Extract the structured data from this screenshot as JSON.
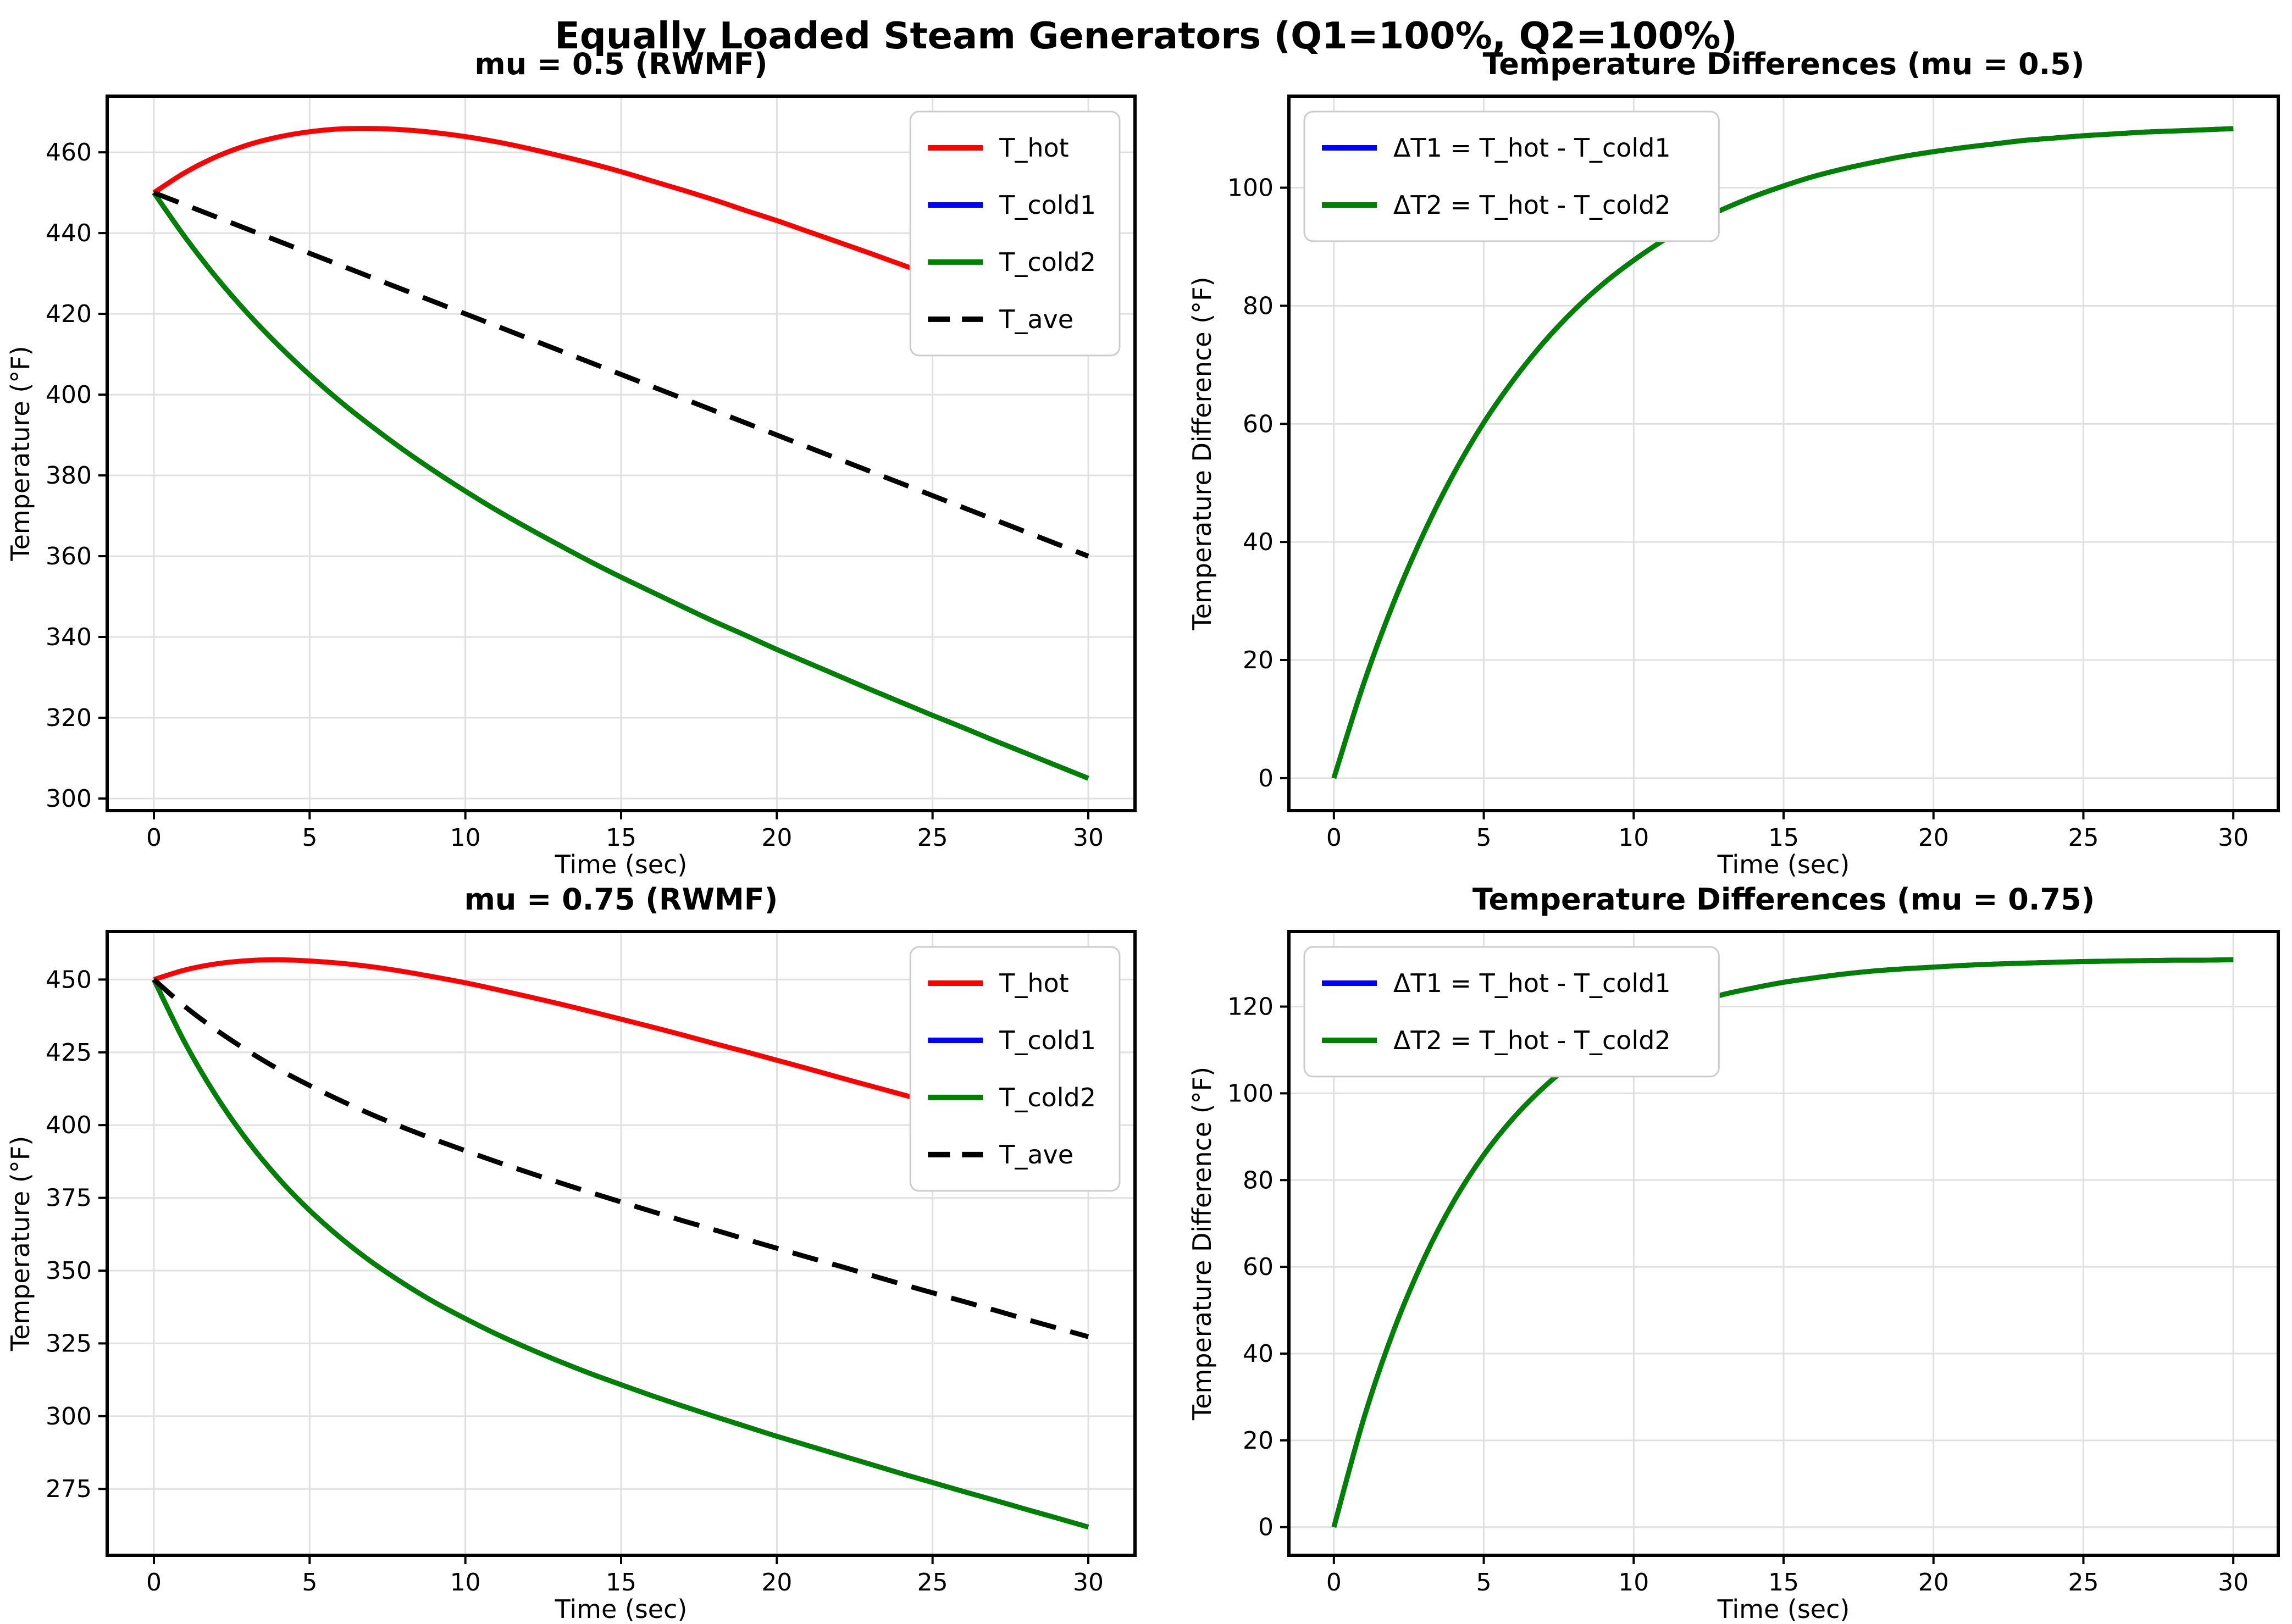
{
  "figure": {
    "suptitle": "Equally Loaded Steam Generators (Q1=100%, Q2=100%)",
    "background": "#ffffff",
    "text_color": "#000000",
    "grid_color": "#e0e0e0",
    "spine_color": "#000000",
    "legend_border_color": "#cccccc"
  },
  "chart_data": [
    {
      "type": "line",
      "title": "mu = 0.5 (RWMF)",
      "xlabel": "Time (sec)",
      "ylabel": "Temperature (°F)",
      "xlim": [
        -1.5,
        31.5
      ],
      "ylim": [
        297.0,
        473.9
      ],
      "xticks": [
        0,
        5,
        10,
        15,
        20,
        25,
        30
      ],
      "yticks": [
        300,
        320,
        340,
        360,
        380,
        400,
        420,
        440,
        460
      ],
      "grid": true,
      "legend_loc": "upper right",
      "x": [
        0,
        1,
        2,
        3,
        4,
        5,
        6,
        7,
        8,
        9,
        10,
        11,
        12,
        13,
        14,
        15,
        16,
        17,
        18,
        19,
        20,
        21,
        22,
        23,
        24,
        25,
        26,
        27,
        28,
        29,
        30
      ],
      "series": [
        {
          "name": "T_hot",
          "color": "#ff0000",
          "dash": null,
          "values": [
            450.0,
            455.0,
            458.9,
            461.8,
            463.8,
            465.1,
            465.8,
            465.9,
            465.6,
            464.9,
            463.9,
            462.6,
            461.0,
            459.2,
            457.3,
            455.2,
            452.9,
            450.6,
            448.2,
            445.6,
            443.1,
            440.4,
            437.7,
            435.0,
            432.2,
            429.4,
            426.5,
            423.7,
            420.8,
            417.9,
            415.0
          ]
        },
        {
          "name": "T_cold1",
          "color": "#0000ff",
          "dash": null,
          "values": [
            450.0,
            439.0,
            429.1,
            420.2,
            412.2,
            404.9,
            398.2,
            392.1,
            386.4,
            381.1,
            376.1,
            371.4,
            367.0,
            362.8,
            358.7,
            354.8,
            351.1,
            347.4,
            343.8,
            340.4,
            336.9,
            333.6,
            330.3,
            327.0,
            323.8,
            320.6,
            317.5,
            314.3,
            311.2,
            308.1,
            305.0
          ]
        },
        {
          "name": "T_cold2",
          "color": "#008000",
          "dash": null,
          "values": [
            450.0,
            439.0,
            429.1,
            420.2,
            412.2,
            404.9,
            398.2,
            392.1,
            386.4,
            381.1,
            376.1,
            371.4,
            367.0,
            362.8,
            358.7,
            354.8,
            351.1,
            347.4,
            343.8,
            340.4,
            336.9,
            333.6,
            330.3,
            327.0,
            323.8,
            320.6,
            317.5,
            314.3,
            311.2,
            308.1,
            305.0
          ]
        },
        {
          "name": "T_ave",
          "color": "#000000",
          "dash": [
            48,
            27
          ],
          "values": [
            450,
            447,
            444,
            441,
            438,
            435,
            432,
            429,
            426,
            423,
            420,
            417,
            414,
            411,
            408,
            405,
            402,
            399,
            396,
            393,
            390,
            387,
            384,
            381,
            378,
            375,
            372,
            369,
            366,
            363,
            360
          ]
        }
      ]
    },
    {
      "type": "line",
      "title": "Temperature Differences (mu = 0.5)",
      "xlabel": "Time (sec)",
      "ylabel": "Temperature Difference (°F)",
      "xlim": [
        -1.5,
        31.5
      ],
      "ylim": [
        -5.5,
        115.5
      ],
      "xticks": [
        0,
        5,
        10,
        15,
        20,
        25,
        30
      ],
      "yticks": [
        0,
        20,
        40,
        60,
        80,
        100
      ],
      "grid": true,
      "legend_loc": "upper left",
      "x": [
        0,
        1,
        2,
        3,
        4,
        5,
        6,
        7,
        8,
        9,
        10,
        11,
        12,
        13,
        14,
        15,
        16,
        17,
        18,
        19,
        20,
        21,
        22,
        23,
        24,
        25,
        26,
        27,
        28,
        29,
        30
      ],
      "series": [
        {
          "name": "ΔT1 = T_hot - T_cold1",
          "color": "#0000ff",
          "dash": null,
          "values": [
            0.0,
            16.1,
            29.8,
            41.5,
            51.6,
            60.2,
            67.5,
            73.8,
            79.2,
            83.8,
            87.7,
            91.1,
            94.0,
            96.4,
            98.5,
            100.3,
            101.9,
            103.2,
            104.3,
            105.3,
            106.1,
            106.8,
            107.4,
            108.0,
            108.4,
            108.8,
            109.1,
            109.4,
            109.6,
            109.8,
            110.0
          ]
        },
        {
          "name": "ΔT2 = T_hot - T_cold2",
          "color": "#008000",
          "dash": null,
          "values": [
            0.0,
            16.1,
            29.8,
            41.5,
            51.6,
            60.2,
            67.5,
            73.8,
            79.2,
            83.8,
            87.7,
            91.1,
            94.0,
            96.4,
            98.5,
            100.3,
            101.9,
            103.2,
            104.3,
            105.3,
            106.1,
            106.8,
            107.4,
            108.0,
            108.4,
            108.8,
            109.1,
            109.4,
            109.6,
            109.8,
            110.0
          ]
        }
      ]
    },
    {
      "type": "line",
      "title": "mu = 0.75 (RWMF)",
      "xlabel": "Time (sec)",
      "ylabel": "Temperature (°F)",
      "xlim": [
        -1.5,
        31.5
      ],
      "ylim": [
        252.2,
        466.5
      ],
      "xticks": [
        0,
        5,
        10,
        15,
        20,
        25,
        30
      ],
      "yticks": [
        275,
        300,
        325,
        350,
        375,
        400,
        425,
        450
      ],
      "grid": true,
      "legend_loc": "upper right",
      "x": [
        0,
        1,
        2,
        3,
        4,
        5,
        6,
        7,
        8,
        9,
        10,
        11,
        12,
        13,
        14,
        15,
        16,
        17,
        18,
        19,
        20,
        21,
        22,
        23,
        24,
        25,
        26,
        27,
        28,
        29,
        30
      ],
      "series": [
        {
          "name": "T_hot",
          "color": "#ff0000",
          "dash": null,
          "values": [
            450.0,
            453.3,
            455.4,
            456.5,
            456.8,
            456.4,
            455.6,
            454.4,
            452.8,
            450.9,
            448.9,
            446.6,
            444.2,
            441.7,
            439.1,
            436.4,
            433.7,
            430.9,
            428.0,
            425.2,
            422.3,
            419.4,
            416.4,
            413.5,
            410.6,
            407.6,
            404.6,
            401.6,
            398.7,
            395.7,
            392.7
          ]
        },
        {
          "name": "T_cold1",
          "color": "#0000ff",
          "dash": null,
          "values": [
            450.0,
            428.2,
            410.0,
            394.7,
            381.7,
            370.7,
            361.2,
            352.9,
            345.7,
            339.2,
            333.5,
            328.2,
            323.4,
            318.9,
            314.7,
            310.8,
            307.0,
            303.4,
            299.9,
            296.5,
            293.1,
            289.9,
            286.7,
            283.5,
            280.3,
            277.2,
            274.1,
            271.1,
            268.0,
            265.0,
            261.9
          ]
        },
        {
          "name": "T_cold2",
          "color": "#008000",
          "dash": null,
          "values": [
            450.0,
            428.2,
            410.0,
            394.7,
            381.7,
            370.7,
            361.2,
            352.9,
            345.7,
            339.2,
            333.5,
            328.2,
            323.4,
            318.9,
            314.7,
            310.8,
            307.0,
            303.4,
            299.9,
            296.5,
            293.1,
            289.9,
            286.7,
            283.5,
            280.3,
            277.2,
            274.1,
            271.1,
            268.0,
            265.0,
            261.9
          ]
        },
        {
          "name": "T_ave",
          "color": "#000000",
          "dash": [
            48,
            27
          ],
          "values": [
            450.0,
            440.7,
            432.7,
            425.6,
            419.2,
            413.6,
            408.4,
            403.6,
            399.2,
            395.1,
            391.2,
            387.4,
            383.8,
            380.3,
            376.9,
            373.6,
            370.3,
            367.1,
            364.0,
            360.8,
            357.7,
            354.6,
            351.6,
            348.5,
            345.4,
            342.4,
            339.4,
            336.4,
            333.3,
            330.3,
            327.3
          ]
        }
      ]
    },
    {
      "type": "line",
      "title": "Temperature Differences (mu = 0.75)",
      "xlabel": "Time (sec)",
      "ylabel": "Temperature Difference (°F)",
      "xlim": [
        -1.5,
        31.5
      ],
      "ylim": [
        -6.5,
        137.3
      ],
      "xticks": [
        0,
        5,
        10,
        15,
        20,
        25,
        30
      ],
      "yticks": [
        0,
        20,
        40,
        60,
        80,
        100,
        120
      ],
      "grid": true,
      "legend_loc": "upper left",
      "x": [
        0,
        1,
        2,
        3,
        4,
        5,
        6,
        7,
        8,
        9,
        10,
        11,
        12,
        13,
        14,
        15,
        16,
        17,
        18,
        19,
        20,
        21,
        22,
        23,
        24,
        25,
        26,
        27,
        28,
        29,
        30
      ],
      "series": [
        {
          "name": "ΔT1 = T_hot - T_cold1",
          "color": "#0000ff",
          "dash": null,
          "values": [
            0.0,
            25.1,
            45.4,
            61.8,
            75.1,
            85.8,
            94.4,
            101.4,
            107.1,
            111.7,
            115.4,
            118.4,
            120.8,
            122.8,
            124.3,
            125.6,
            126.6,
            127.5,
            128.2,
            128.7,
            129.1,
            129.5,
            129.8,
            130.0,
            130.2,
            130.4,
            130.5,
            130.6,
            130.7,
            130.7,
            130.8
          ]
        },
        {
          "name": "ΔT2 = T_hot - T_cold2",
          "color": "#008000",
          "dash": null,
          "values": [
            0.0,
            25.1,
            45.4,
            61.8,
            75.1,
            85.8,
            94.4,
            101.4,
            107.1,
            111.7,
            115.4,
            118.4,
            120.8,
            122.8,
            124.3,
            125.6,
            126.6,
            127.5,
            128.2,
            128.7,
            129.1,
            129.5,
            129.8,
            130.0,
            130.2,
            130.4,
            130.5,
            130.6,
            130.7,
            130.7,
            130.8
          ]
        }
      ]
    }
  ]
}
